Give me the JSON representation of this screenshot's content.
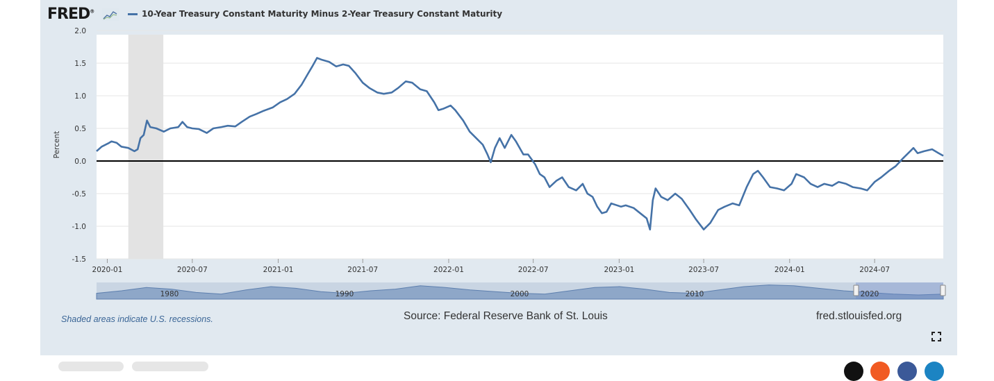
{
  "logo": {
    "text": "FRED",
    "mark": "®"
  },
  "legend": {
    "series_label": "10-Year Treasury Constant Maturity Minus 2-Year Treasury Constant Maturity",
    "color": "#4572a7"
  },
  "footer": {
    "recession_note": "Shaded areas indicate U.S. recessions.",
    "source": "Source: Federal Reserve Bank of St. Louis",
    "site": "fred.stlouisfed.org"
  },
  "chart_data": {
    "type": "line",
    "ylabel": "Percent",
    "ylim": [
      -1.5,
      2.0
    ],
    "y_ticks": [
      "2.0",
      "1.5",
      "1.0",
      "0.5",
      "0.0",
      "-0.5",
      "-1.0",
      "-1.5"
    ],
    "x_ticks": [
      "2020-01",
      "2020-07",
      "2021-01",
      "2021-07",
      "2022-01",
      "2022-07",
      "2023-01",
      "2023-07",
      "2024-01",
      "2024-07"
    ],
    "xlim": [
      "2019-12-09",
      "2024-11-25"
    ],
    "recession": {
      "start": "2020-02-15",
      "end": "2020-04-30"
    },
    "grid": true,
    "zero_line": true,
    "series": [
      {
        "name": "10-Year Treasury Constant Maturity Minus 2-Year Treasury Constant Maturity",
        "points": [
          [
            "2019-12-09",
            0.15
          ],
          [
            "2019-12-20",
            0.22
          ],
          [
            "2020-01-03",
            0.27
          ],
          [
            "2020-01-10",
            0.3
          ],
          [
            "2020-01-21",
            0.28
          ],
          [
            "2020-01-31",
            0.22
          ],
          [
            "2020-02-15",
            0.2
          ],
          [
            "2020-02-28",
            0.15
          ],
          [
            "2020-03-06",
            0.18
          ],
          [
            "2020-03-12",
            0.35
          ],
          [
            "2020-03-19",
            0.4
          ],
          [
            "2020-03-26",
            0.62
          ],
          [
            "2020-04-02",
            0.52
          ],
          [
            "2020-04-15",
            0.5
          ],
          [
            "2020-05-01",
            0.45
          ],
          [
            "2020-05-15",
            0.5
          ],
          [
            "2020-06-01",
            0.52
          ],
          [
            "2020-06-10",
            0.6
          ],
          [
            "2020-06-20",
            0.52
          ],
          [
            "2020-07-01",
            0.5
          ],
          [
            "2020-07-15",
            0.49
          ],
          [
            "2020-08-01",
            0.43
          ],
          [
            "2020-08-15",
            0.5
          ],
          [
            "2020-09-01",
            0.52
          ],
          [
            "2020-09-15",
            0.54
          ],
          [
            "2020-10-01",
            0.53
          ],
          [
            "2020-10-15",
            0.6
          ],
          [
            "2020-11-01",
            0.68
          ],
          [
            "2020-11-15",
            0.72
          ],
          [
            "2020-12-01",
            0.77
          ],
          [
            "2020-12-20",
            0.82
          ],
          [
            "2021-01-05",
            0.9
          ],
          [
            "2021-01-20",
            0.95
          ],
          [
            "2021-02-05",
            1.03
          ],
          [
            "2021-02-20",
            1.17
          ],
          [
            "2021-03-05",
            1.33
          ],
          [
            "2021-03-15",
            1.45
          ],
          [
            "2021-03-25",
            1.58
          ],
          [
            "2021-04-05",
            1.55
          ],
          [
            "2021-04-20",
            1.52
          ],
          [
            "2021-05-05",
            1.45
          ],
          [
            "2021-05-20",
            1.48
          ],
          [
            "2021-06-01",
            1.46
          ],
          [
            "2021-06-15",
            1.35
          ],
          [
            "2021-07-01",
            1.2
          ],
          [
            "2021-07-15",
            1.12
          ],
          [
            "2021-08-01",
            1.05
          ],
          [
            "2021-08-15",
            1.03
          ],
          [
            "2021-09-01",
            1.05
          ],
          [
            "2021-09-15",
            1.12
          ],
          [
            "2021-10-01",
            1.22
          ],
          [
            "2021-10-15",
            1.2
          ],
          [
            "2021-11-01",
            1.1
          ],
          [
            "2021-11-15",
            1.07
          ],
          [
            "2021-12-01",
            0.9
          ],
          [
            "2021-12-10",
            0.78
          ],
          [
            "2021-12-20",
            0.8
          ],
          [
            "2022-01-05",
            0.85
          ],
          [
            "2022-01-15",
            0.78
          ],
          [
            "2022-02-01",
            0.62
          ],
          [
            "2022-02-15",
            0.45
          ],
          [
            "2022-03-01",
            0.35
          ],
          [
            "2022-03-15",
            0.25
          ],
          [
            "2022-03-25",
            0.1
          ],
          [
            "2022-04-01",
            -0.02
          ],
          [
            "2022-04-10",
            0.2
          ],
          [
            "2022-04-20",
            0.35
          ],
          [
            "2022-05-01",
            0.2
          ],
          [
            "2022-05-15",
            0.4
          ],
          [
            "2022-05-25",
            0.3
          ],
          [
            "2022-06-10",
            0.1
          ],
          [
            "2022-06-20",
            0.1
          ],
          [
            "2022-07-05",
            -0.05
          ],
          [
            "2022-07-15",
            -0.2
          ],
          [
            "2022-07-25",
            -0.25
          ],
          [
            "2022-08-05",
            -0.4
          ],
          [
            "2022-08-20",
            -0.3
          ],
          [
            "2022-09-01",
            -0.25
          ],
          [
            "2022-09-15",
            -0.4
          ],
          [
            "2022-10-01",
            -0.45
          ],
          [
            "2022-10-15",
            -0.35
          ],
          [
            "2022-10-25",
            -0.5
          ],
          [
            "2022-11-05",
            -0.55
          ],
          [
            "2022-11-15",
            -0.7
          ],
          [
            "2022-11-25",
            -0.8
          ],
          [
            "2022-12-05",
            -0.78
          ],
          [
            "2022-12-15",
            -0.65
          ],
          [
            "2023-01-05",
            -0.7
          ],
          [
            "2023-01-15",
            -0.68
          ],
          [
            "2023-02-01",
            -0.72
          ],
          [
            "2023-02-15",
            -0.8
          ],
          [
            "2023-03-01",
            -0.88
          ],
          [
            "2023-03-08",
            -1.05
          ],
          [
            "2023-03-14",
            -0.6
          ],
          [
            "2023-03-20",
            -0.42
          ],
          [
            "2023-04-01",
            -0.55
          ],
          [
            "2023-04-15",
            -0.6
          ],
          [
            "2023-05-01",
            -0.5
          ],
          [
            "2023-05-15",
            -0.58
          ],
          [
            "2023-06-01",
            -0.75
          ],
          [
            "2023-06-15",
            -0.9
          ],
          [
            "2023-07-01",
            -1.05
          ],
          [
            "2023-07-15",
            -0.95
          ],
          [
            "2023-08-01",
            -0.75
          ],
          [
            "2023-08-15",
            -0.7
          ],
          [
            "2023-09-01",
            -0.65
          ],
          [
            "2023-09-15",
            -0.68
          ],
          [
            "2023-10-01",
            -0.4
          ],
          [
            "2023-10-15",
            -0.2
          ],
          [
            "2023-10-25",
            -0.15
          ],
          [
            "2023-11-05",
            -0.25
          ],
          [
            "2023-11-20",
            -0.4
          ],
          [
            "2023-12-05",
            -0.42
          ],
          [
            "2023-12-20",
            -0.45
          ],
          [
            "2024-01-05",
            -0.35
          ],
          [
            "2024-01-15",
            -0.2
          ],
          [
            "2024-02-01",
            -0.25
          ],
          [
            "2024-02-15",
            -0.35
          ],
          [
            "2024-03-01",
            -0.4
          ],
          [
            "2024-03-15",
            -0.35
          ],
          [
            "2024-04-01",
            -0.38
          ],
          [
            "2024-04-15",
            -0.32
          ],
          [
            "2024-05-01",
            -0.35
          ],
          [
            "2024-05-15",
            -0.4
          ],
          [
            "2024-06-01",
            -0.42
          ],
          [
            "2024-06-15",
            -0.45
          ],
          [
            "2024-07-01",
            -0.32
          ],
          [
            "2024-07-15",
            -0.25
          ],
          [
            "2024-08-01",
            -0.15
          ],
          [
            "2024-08-15",
            -0.08
          ],
          [
            "2024-09-01",
            0.05
          ],
          [
            "2024-09-15",
            0.15
          ],
          [
            "2024-09-22",
            0.2
          ],
          [
            "2024-10-01",
            0.12
          ],
          [
            "2024-10-15",
            0.15
          ],
          [
            "2024-11-01",
            0.18
          ],
          [
            "2024-11-15",
            0.12
          ],
          [
            "2024-11-25",
            0.08
          ]
        ]
      }
    ]
  },
  "navigator": {
    "labels": [
      "1980",
      "1990",
      "2000",
      "2010",
      "2020"
    ],
    "profile": [
      0.35,
      0.5,
      0.7,
      0.6,
      0.4,
      0.3,
      0.55,
      0.75,
      0.65,
      0.45,
      0.35,
      0.5,
      0.6,
      0.8,
      0.7,
      0.55,
      0.45,
      0.35,
      0.3,
      0.5,
      0.7,
      0.75,
      0.6,
      0.4,
      0.35,
      0.55,
      0.75,
      0.85,
      0.8,
      0.65,
      0.5,
      0.4,
      0.3,
      0.25,
      0.3
    ]
  }
}
